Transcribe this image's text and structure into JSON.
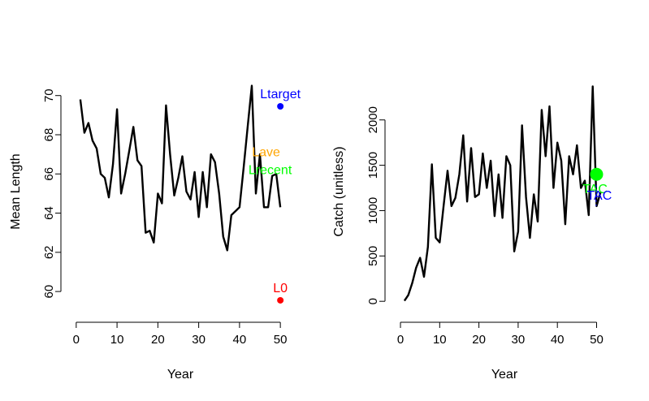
{
  "chart_data": [
    {
      "type": "line",
      "xlabel": "Year",
      "ylabel": "Mean Length",
      "xlim": [
        1,
        50
      ],
      "ylim": [
        59.5,
        70.7
      ],
      "xticks": [
        0,
        10,
        20,
        30,
        40,
        50
      ],
      "yticks": [
        60,
        62,
        64,
        66,
        68,
        70
      ],
      "x": [
        1,
        2,
        3,
        4,
        5,
        6,
        7,
        8,
        9,
        10,
        11,
        12,
        13,
        14,
        15,
        16,
        17,
        18,
        19,
        20,
        21,
        22,
        23,
        24,
        25,
        26,
        27,
        28,
        29,
        30,
        31,
        32,
        33,
        34,
        35,
        36,
        37,
        38,
        39,
        40,
        41,
        42,
        43,
        44,
        45,
        46,
        47,
        48,
        49,
        50
      ],
      "series": [
        {
          "values": [
            69.8,
            68.1,
            68.6,
            67.7,
            67.3,
            66.0,
            65.8,
            64.8,
            66.5,
            69.3,
            65.0,
            66.0,
            67.2,
            68.4,
            66.7,
            66.4,
            63.0,
            63.1,
            62.5,
            65.0,
            64.5,
            69.5,
            67.0,
            64.9,
            65.8,
            66.9,
            65.1,
            64.7,
            66.1,
            63.8,
            66.1,
            64.3,
            67.0,
            66.6,
            65.0,
            62.8,
            62.1,
            63.9,
            64.1,
            64.3,
            66.3,
            68.4,
            70.5,
            65.0,
            67.0,
            64.3,
            64.3,
            65.9,
            66.0,
            64.3
          ],
          "color": "#000000"
        }
      ],
      "annotations": [
        {
          "label": "Ltarget",
          "x": 50,
          "y": 69.45,
          "color": "#0000ff"
        },
        {
          "label": "Lave",
          "x": 46.5,
          "y": 66.9,
          "color": "#ffa500"
        },
        {
          "label": "Lrecent",
          "x": 47.5,
          "y": 66.0,
          "color": "#00ff00"
        },
        {
          "label": "L0",
          "x": 50,
          "y": 59.55,
          "color": "#ff0000"
        }
      ]
    },
    {
      "type": "line",
      "xlabel": "Year",
      "ylabel": "Catch (unitless)",
      "xlim": [
        1,
        52
      ],
      "ylim": [
        0,
        2420
      ],
      "xticks": [
        0,
        10,
        20,
        30,
        40,
        50
      ],
      "yticks": [
        0,
        500,
        1000,
        1500,
        2000
      ],
      "x": [
        1,
        2,
        3,
        4,
        5,
        6,
        7,
        8,
        9,
        10,
        11,
        12,
        13,
        14,
        15,
        16,
        17,
        18,
        19,
        20,
        21,
        22,
        23,
        24,
        25,
        26,
        27,
        28,
        29,
        30,
        31,
        32,
        33,
        34,
        35,
        36,
        37,
        38,
        39,
        40,
        41,
        42,
        43,
        44,
        45,
        46,
        47,
        48,
        49,
        50,
        51
      ],
      "series": [
        {
          "values": [
            5,
            70,
            200,
            370,
            480,
            270,
            600,
            1510,
            700,
            650,
            1050,
            1440,
            1050,
            1140,
            1400,
            1830,
            1100,
            1690,
            1150,
            1180,
            1630,
            1250,
            1550,
            940,
            1400,
            920,
            1600,
            1500,
            550,
            770,
            1940,
            1150,
            700,
            1180,
            880,
            2110,
            1600,
            2150,
            1250,
            1750,
            1550,
            850,
            1600,
            1400,
            1720,
            1250,
            1330,
            950,
            2370,
            1050,
            1200
          ],
          "color": "#000000"
        }
      ],
      "annotations": [
        {
          "label": "TAC",
          "x": 50,
          "y": 1400,
          "color": "#00ff00",
          "marker": "big-dot"
        },
        {
          "label": "TAC",
          "x": 50.7,
          "y": 1140,
          "color": "#0000ff"
        }
      ]
    }
  ]
}
